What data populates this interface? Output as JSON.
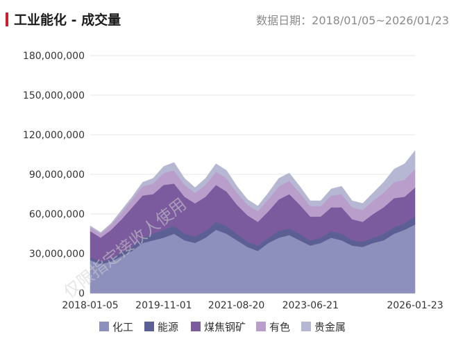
{
  "header": {
    "title": "工业能化 - 成交量",
    "date_range": "数据日期：2018/01/05~2026/01/23"
  },
  "watermark": "仅限指定接收人使用",
  "colors": {
    "title_bar": "#c8202f",
    "grid": "#e6e6e6"
  },
  "chart_data": {
    "type": "area",
    "stacked": true,
    "x_start": "2018-01-05",
    "x_end": "2026-01-23",
    "x_ticks": [
      "2018-01-05",
      "2019-11-01",
      "2021-08-20",
      "2023-06-21",
      "2026-01-23"
    ],
    "y_ticks": [
      "0",
      "30,000,000",
      "60,000,000",
      "90,000,000",
      "120,000,000",
      "150,000,000",
      "180,000,000"
    ],
    "ylim": [
      0,
      180000000
    ],
    "legend_position": "bottom",
    "series": [
      {
        "name": "化工",
        "color": "#8d8fbd",
        "values": [
          25000000,
          22000000,
          24000000,
          28000000,
          32000000,
          38000000,
          40000000,
          42000000,
          45000000,
          40000000,
          38000000,
          42000000,
          48000000,
          45000000,
          40000000,
          35000000,
          32000000,
          38000000,
          42000000,
          44000000,
          40000000,
          36000000,
          38000000,
          42000000,
          40000000,
          36000000,
          35000000,
          38000000,
          40000000,
          45000000,
          48000000,
          52000000
        ]
      },
      {
        "name": "能源",
        "color": "#5c5f93",
        "values": [
          2000000,
          2000000,
          2000000,
          3000000,
          3000000,
          4000000,
          5000000,
          6000000,
          6000000,
          5000000,
          5000000,
          5000000,
          6000000,
          6000000,
          5000000,
          4000000,
          4000000,
          4000000,
          5000000,
          5000000,
          5000000,
          4000000,
          4000000,
          5000000,
          5000000,
          4000000,
          4000000,
          4000000,
          5000000,
          5000000,
          5000000,
          6000000
        ]
      },
      {
        "name": "煤焦钢矿",
        "color": "#7b5b9e",
        "values": [
          20000000,
          18000000,
          22000000,
          25000000,
          30000000,
          32000000,
          30000000,
          34000000,
          32000000,
          28000000,
          25000000,
          26000000,
          28000000,
          26000000,
          22000000,
          20000000,
          18000000,
          20000000,
          24000000,
          26000000,
          22000000,
          18000000,
          16000000,
          18000000,
          20000000,
          16000000,
          15000000,
          18000000,
          20000000,
          22000000,
          20000000,
          22000000
        ]
      },
      {
        "name": "有色",
        "color": "#b99dca",
        "values": [
          3000000,
          3000000,
          4000000,
          5000000,
          6000000,
          7000000,
          8000000,
          9000000,
          10000000,
          9000000,
          8000000,
          9000000,
          10000000,
          10000000,
          9000000,
          8000000,
          8000000,
          9000000,
          10000000,
          10000000,
          9000000,
          8000000,
          8000000,
          9000000,
          10000000,
          9000000,
          9000000,
          10000000,
          11000000,
          12000000,
          13000000,
          14000000
        ]
      },
      {
        "name": "贵金属",
        "color": "#b6b7d3",
        "values": [
          1000000,
          1000000,
          1000000,
          2000000,
          2000000,
          3000000,
          4000000,
          5000000,
          6000000,
          5000000,
          4000000,
          5000000,
          6000000,
          6000000,
          5000000,
          4000000,
          4000000,
          5000000,
          6000000,
          6000000,
          5000000,
          4000000,
          4000000,
          5000000,
          6000000,
          5000000,
          5000000,
          6000000,
          8000000,
          10000000,
          12000000,
          14000000
        ]
      }
    ]
  }
}
